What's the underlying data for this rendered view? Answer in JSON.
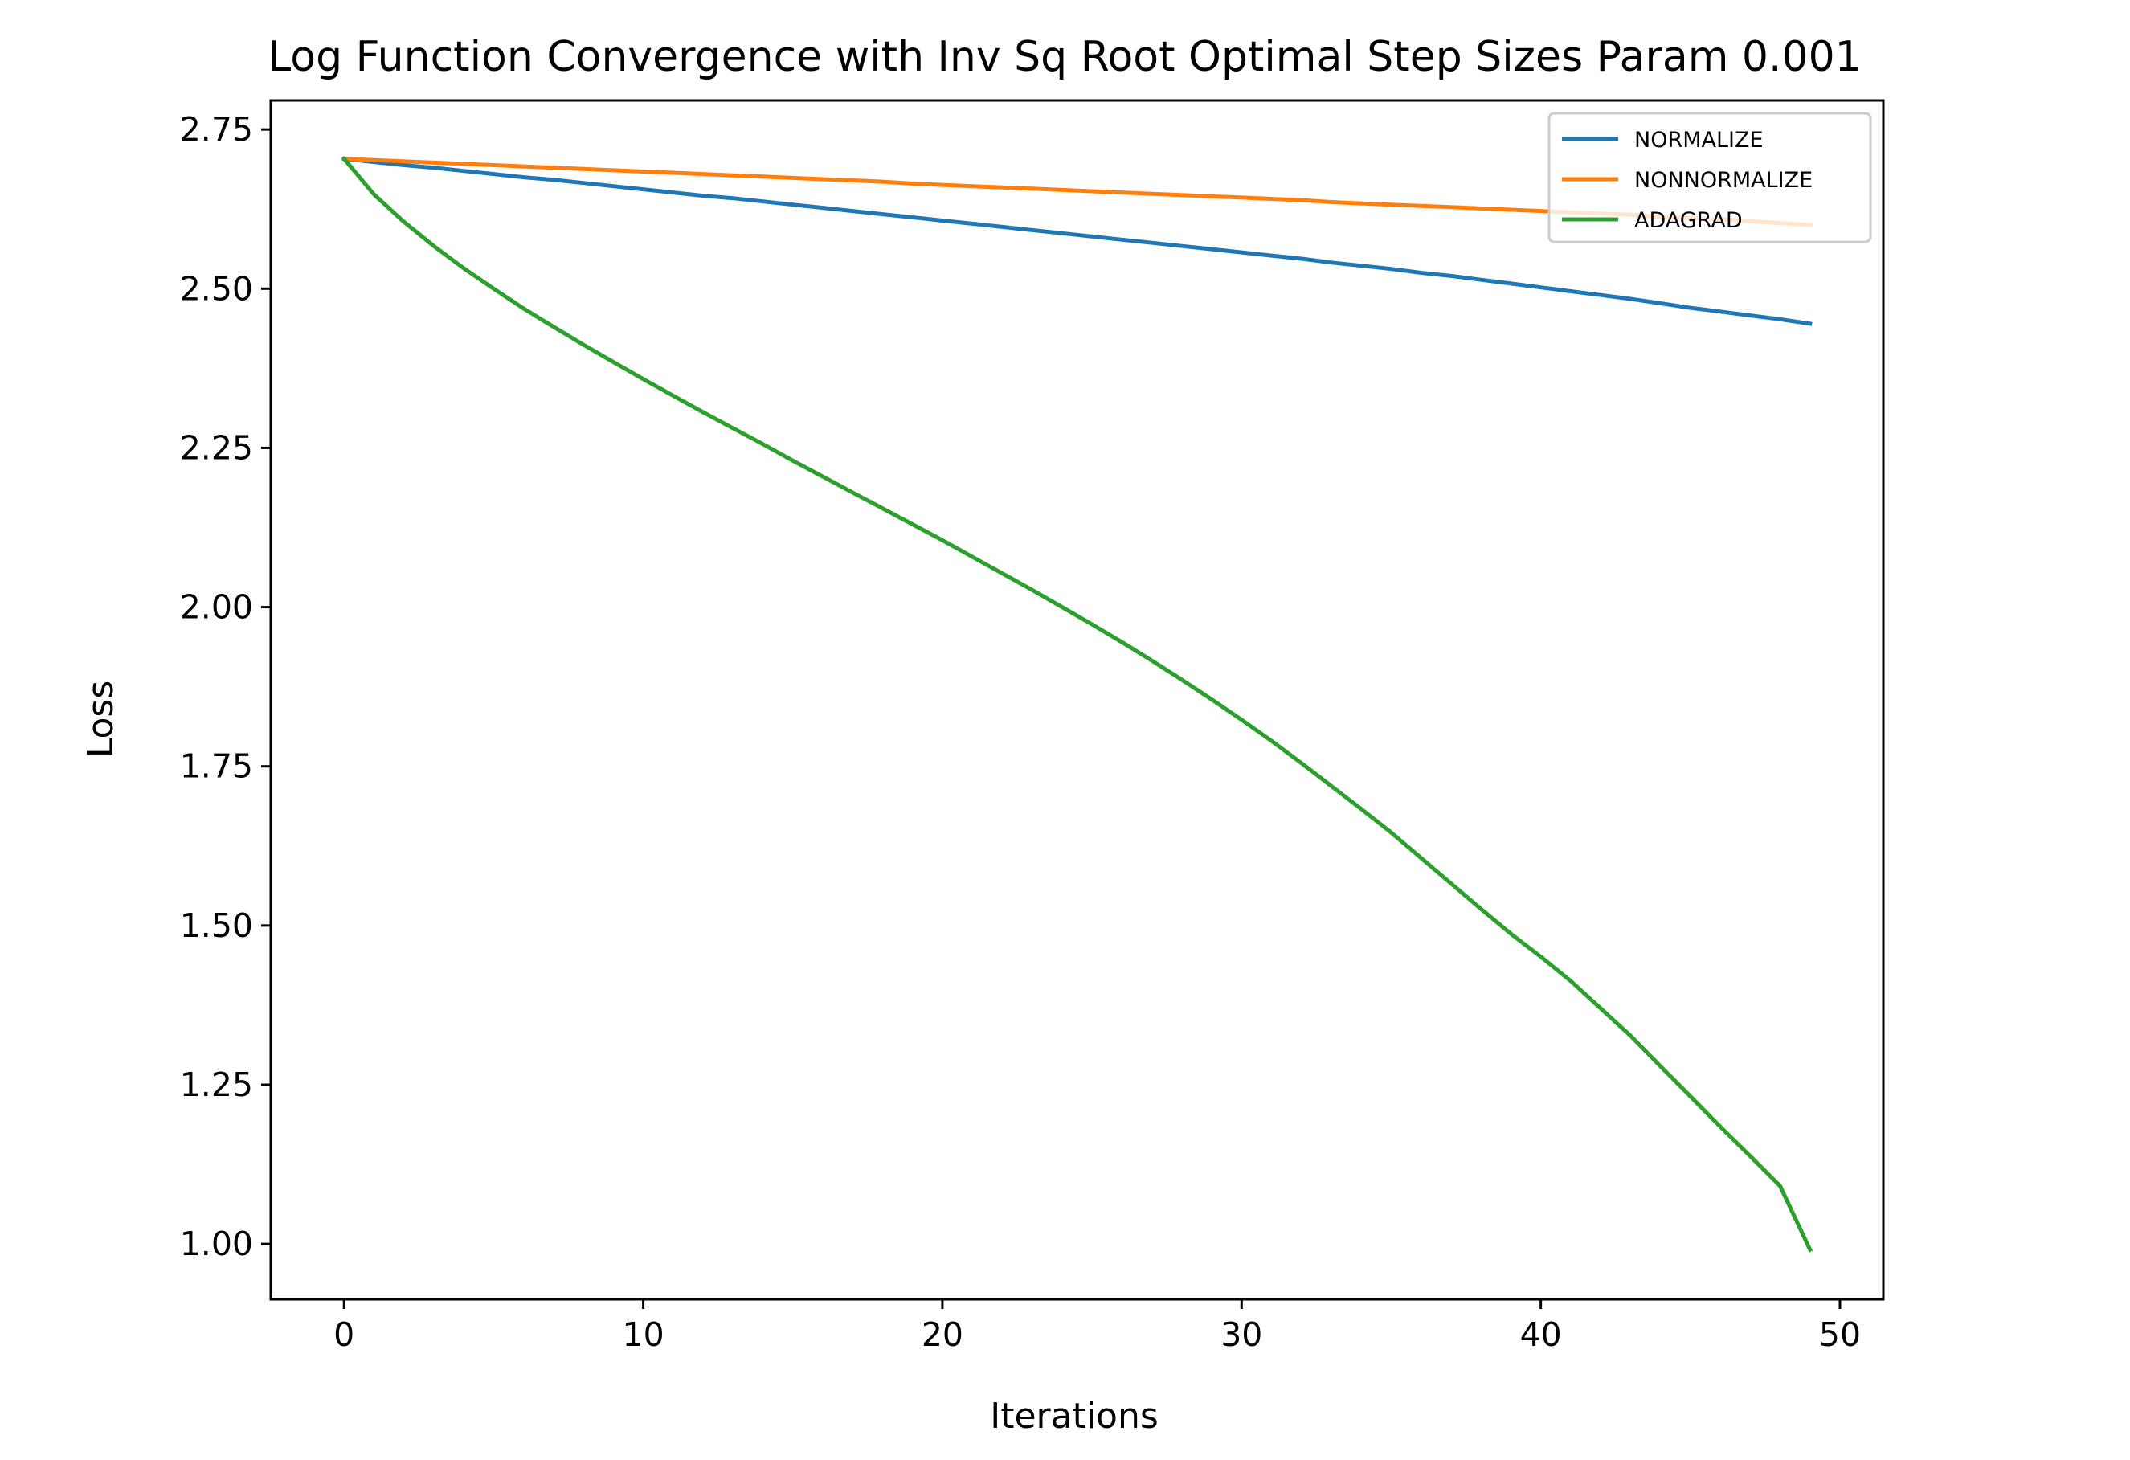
{
  "chart_data": {
    "type": "line",
    "title": "Log Function Convergence with Inv Sq Root Optimal Step Sizes Param 0.001",
    "xlabel": "Iterations",
    "ylabel": "Loss",
    "xlim": [
      -2.45,
      51.45
    ],
    "ylim": [
      0.9131,
      2.7956
    ],
    "xticks": [
      0,
      10,
      20,
      30,
      40,
      50
    ],
    "xtick_labels": [
      "0",
      "10",
      "20",
      "30",
      "40",
      "50"
    ],
    "yticks": [
      1.0,
      1.25,
      1.5,
      1.75,
      2.0,
      2.25,
      2.5,
      2.75
    ],
    "ytick_labels": [
      "1.00",
      "1.25",
      "1.50",
      "1.75",
      "2.00",
      "2.25",
      "2.50",
      "2.75"
    ],
    "grid": false,
    "legend_position": "upper-right",
    "x": [
      0,
      1,
      2,
      3,
      4,
      5,
      6,
      7,
      8,
      9,
      10,
      11,
      12,
      13,
      14,
      15,
      16,
      17,
      18,
      19,
      20,
      21,
      22,
      23,
      24,
      25,
      26,
      27,
      28,
      29,
      30,
      31,
      32,
      33,
      34,
      35,
      36,
      37,
      38,
      39,
      40,
      41,
      42,
      43,
      44,
      45,
      46,
      47,
      48,
      49
    ],
    "series": [
      {
        "name": "NORMALIZE",
        "color": "#1f77b4",
        "values": [
          2.704,
          2.699,
          2.694,
          2.69,
          2.685,
          2.68,
          2.675,
          2.671,
          2.666,
          2.661,
          2.656,
          2.651,
          2.646,
          2.642,
          2.637,
          2.632,
          2.627,
          2.622,
          2.617,
          2.612,
          2.607,
          2.602,
          2.597,
          2.592,
          2.587,
          2.582,
          2.577,
          2.572,
          2.567,
          2.562,
          2.557,
          2.552,
          2.547,
          2.541,
          2.536,
          2.531,
          2.525,
          2.52,
          2.514,
          2.508,
          2.502,
          2.496,
          2.49,
          2.484,
          2.477,
          2.47,
          2.464,
          2.458,
          2.452,
          2.445
        ]
      },
      {
        "name": "NONNORMALIZE",
        "color": "#ff7f0e",
        "values": [
          2.704,
          2.702,
          2.7,
          2.698,
          2.696,
          2.694,
          2.692,
          2.69,
          2.688,
          2.686,
          2.684,
          2.682,
          2.68,
          2.678,
          2.676,
          2.674,
          2.672,
          2.67,
          2.668,
          2.665,
          2.663,
          2.661,
          2.659,
          2.657,
          2.655,
          2.653,
          2.651,
          2.649,
          2.647,
          2.645,
          2.643,
          2.641,
          2.639,
          2.636,
          2.634,
          2.632,
          2.63,
          2.628,
          2.626,
          2.624,
          2.622,
          2.62,
          2.618,
          2.616,
          2.613,
          2.611,
          2.609,
          2.606,
          2.603,
          2.6
        ]
      },
      {
        "name": "ADAGRAD",
        "color": "#2ca02c",
        "values": [
          2.704,
          2.648,
          2.605,
          2.567,
          2.532,
          2.5,
          2.469,
          2.44,
          2.412,
          2.385,
          2.358,
          2.332,
          2.306,
          2.281,
          2.256,
          2.23,
          2.205,
          2.18,
          2.155,
          2.13,
          2.105,
          2.079,
          2.053,
          2.027,
          2.0,
          1.973,
          1.945,
          1.916,
          1.886,
          1.855,
          1.823,
          1.79,
          1.755,
          1.719,
          1.683,
          1.646,
          1.606,
          1.566,
          1.526,
          1.487,
          1.451,
          1.413,
          1.37,
          1.327,
          1.279,
          1.232,
          1.184,
          1.138,
          1.091,
          0.991
        ]
      }
    ]
  }
}
